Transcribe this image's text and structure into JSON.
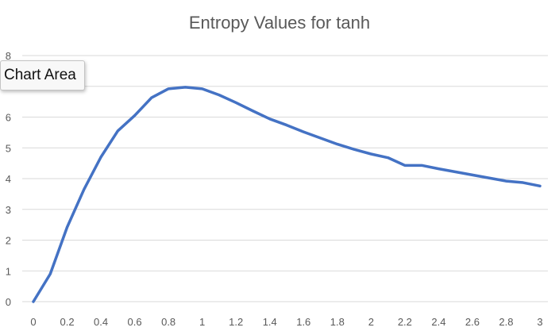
{
  "chart_data": {
    "type": "line",
    "title": "Entropy Values for tanh",
    "xlabel": "",
    "ylabel": "",
    "x": [
      0,
      0.1,
      0.2,
      0.3,
      0.4,
      0.5,
      0.6,
      0.7,
      0.8,
      0.9,
      1,
      1.1,
      1.2,
      1.3,
      1.4,
      1.5,
      1.6,
      1.7,
      1.8,
      1.9,
      2,
      2.1,
      2.2,
      2.3,
      2.4,
      2.5,
      2.6,
      2.7,
      2.8,
      2.9,
      3
    ],
    "x_tick_labels": [
      "0",
      "0.2",
      "0.4",
      "0.6",
      "0.8",
      "1",
      "1.2",
      "1.4",
      "1.6",
      "1.8",
      "2",
      "2.2",
      "2.4",
      "2.6",
      "2.8",
      "3"
    ],
    "x_tick_values": [
      0,
      0.2,
      0.4,
      0.6,
      0.8,
      1,
      1.2,
      1.4,
      1.6,
      1.8,
      2,
      2.2,
      2.4,
      2.6,
      2.8,
      3
    ],
    "y_tick_labels": [
      "0",
      "1",
      "2",
      "3",
      "4",
      "5",
      "6",
      "7",
      "8"
    ],
    "ylim": [
      0,
      8
    ],
    "xlim": [
      0,
      3
    ],
    "grid": true,
    "legend": "none",
    "series": [
      {
        "color": "#4472C4",
        "values": [
          0,
          0.9,
          2.42,
          3.65,
          4.7,
          5.55,
          6.05,
          6.63,
          6.92,
          6.97,
          6.92,
          6.72,
          6.47,
          6.2,
          5.94,
          5.74,
          5.52,
          5.32,
          5.12,
          4.95,
          4.8,
          4.68,
          4.43,
          4.43,
          4.32,
          4.22,
          4.12,
          4.02,
          3.92,
          3.87,
          3.76
        ]
      }
    ],
    "colors": {
      "grid": "#d9d9d9",
      "text": "#595959"
    }
  },
  "tooltip": {
    "text": "Chart Area"
  }
}
